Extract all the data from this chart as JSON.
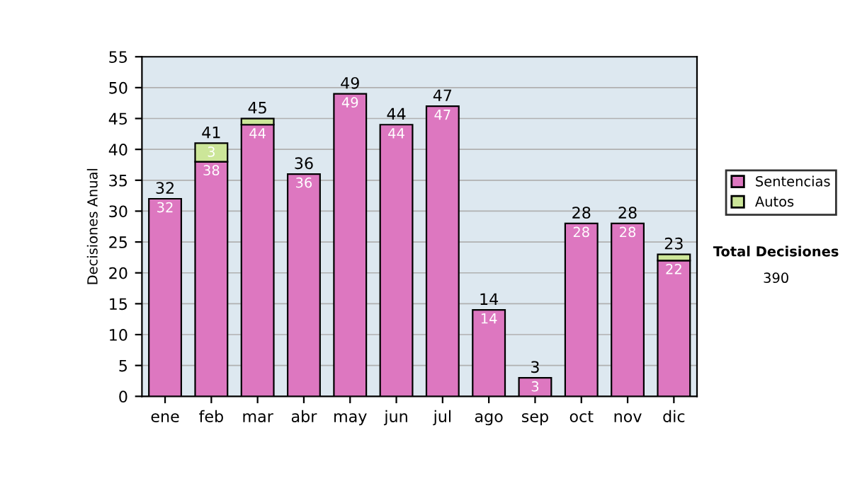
{
  "chart_data": {
    "type": "bar",
    "stacked": true,
    "ylabel": "Decisiones Anual",
    "categories": [
      "ene",
      "feb",
      "mar",
      "abr",
      "may",
      "jun",
      "jul",
      "ago",
      "sep",
      "oct",
      "nov",
      "dic"
    ],
    "series": [
      {
        "name": "Sentencias",
        "color": "#dd77c0",
        "values": [
          32,
          38,
          44,
          36,
          49,
          44,
          47,
          14,
          3,
          28,
          28,
          22
        ],
        "value_labels": [
          "32",
          "38",
          "44",
          "36",
          "49",
          "44",
          "47",
          "14",
          "3",
          "28",
          "28",
          "22"
        ]
      },
      {
        "name": "Autos",
        "color": "#cce699",
        "values": [
          null,
          3,
          1,
          null,
          null,
          null,
          null,
          null,
          null,
          null,
          null,
          1
        ],
        "value_labels": [
          null,
          "3",
          null,
          null,
          null,
          null,
          null,
          null,
          null,
          null,
          null,
          null
        ]
      }
    ],
    "totals": [
      "32",
      "41",
      "45",
      "36",
      "49",
      "44",
      "47",
      "14",
      "3",
      "28",
      "28",
      "23"
    ],
    "ylim": [
      0,
      55
    ],
    "yticks": [
      0,
      5,
      10,
      15,
      20,
      25,
      30,
      35,
      40,
      45,
      50,
      55
    ],
    "grid": "y",
    "legend": "right",
    "annotations": [
      "Total Decisiones",
      "390"
    ]
  }
}
